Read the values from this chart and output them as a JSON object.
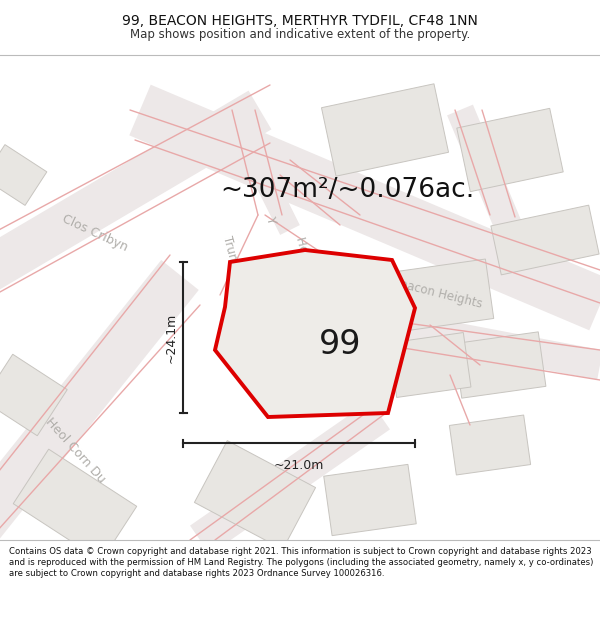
{
  "title_line1": "99, BEACON HEIGHTS, MERTHYR TYDFIL, CF48 1NN",
  "title_line2": "Map shows position and indicative extent of the property.",
  "area_annotation": "~307m²/~0.076ac.",
  "dimension_h": "~24.1m",
  "dimension_w": "~21.0m",
  "property_number": "99",
  "footer_text": "Contains OS data © Crown copyright and database right 2021. This information is subject to Crown copyright and database rights 2023 and is reproduced with the permission of HM Land Registry. The polygons (including the associated geometry, namely x, y co-ordinates) are subject to Crown copyright and database rights 2023 Ordnance Survey 100026316.",
  "bg_color": "#f5f4f2",
  "road_color": "#e8a8a8",
  "road_color2": "#d08080",
  "block_fill": "#e8e6e2",
  "block_edge": "#c8c5c0",
  "property_fill": "#eeece8",
  "property_edge": "#dd0000",
  "dim_color": "#222222",
  "label_color": "#b0aeaa",
  "text_color": "#111111",
  "road_label_size": 9,
  "property_label_size": 22,
  "area_label_size": 19,
  "dim_label_size": 9
}
